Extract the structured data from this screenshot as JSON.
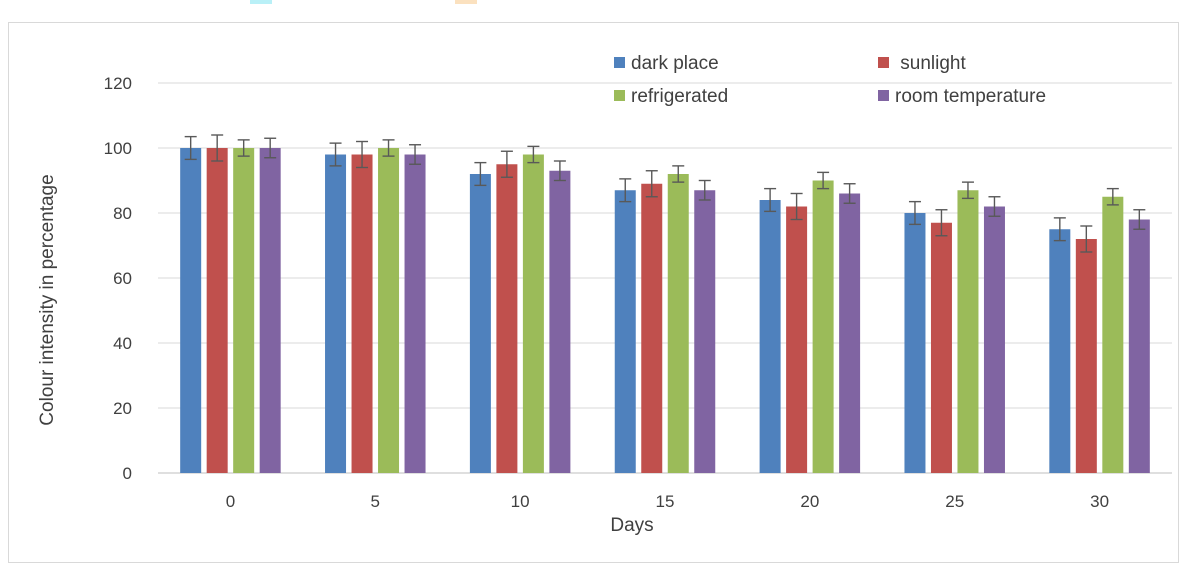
{
  "chart_data": {
    "type": "bar",
    "xlabel": "Days",
    "ylabel": "Colour intensity in percentage",
    "ylim": [
      0,
      120
    ],
    "y_ticks": [
      0,
      20,
      40,
      60,
      80,
      100,
      120
    ],
    "categories": [
      "0",
      "5",
      "10",
      "15",
      "20",
      "25",
      "30"
    ],
    "grid": true,
    "legend_position": "top-right",
    "series": [
      {
        "name": "dark place",
        "color": "#4f81bd",
        "values": [
          100,
          98,
          92,
          87,
          84,
          80,
          75
        ],
        "errors": [
          3.5,
          3.5,
          3.5,
          3.5,
          3.5,
          3.5,
          3.5
        ]
      },
      {
        "name": " sunlight",
        "color": "#c0504d",
        "values": [
          100,
          98,
          95,
          89,
          82,
          77,
          72
        ],
        "errors": [
          4,
          4,
          4,
          4,
          4,
          4,
          4
        ]
      },
      {
        "name": "refrigerated",
        "color": "#9bbb59",
        "values": [
          100,
          100,
          98,
          92,
          90,
          87,
          85
        ],
        "errors": [
          2.5,
          2.5,
          2.5,
          2.5,
          2.5,
          2.5,
          2.5
        ]
      },
      {
        "name": "room temperature",
        "color": "#8064a2",
        "values": [
          100,
          98,
          93,
          87,
          86,
          82,
          78
        ],
        "errors": [
          3,
          3,
          3,
          3,
          3,
          3,
          3
        ]
      }
    ]
  }
}
